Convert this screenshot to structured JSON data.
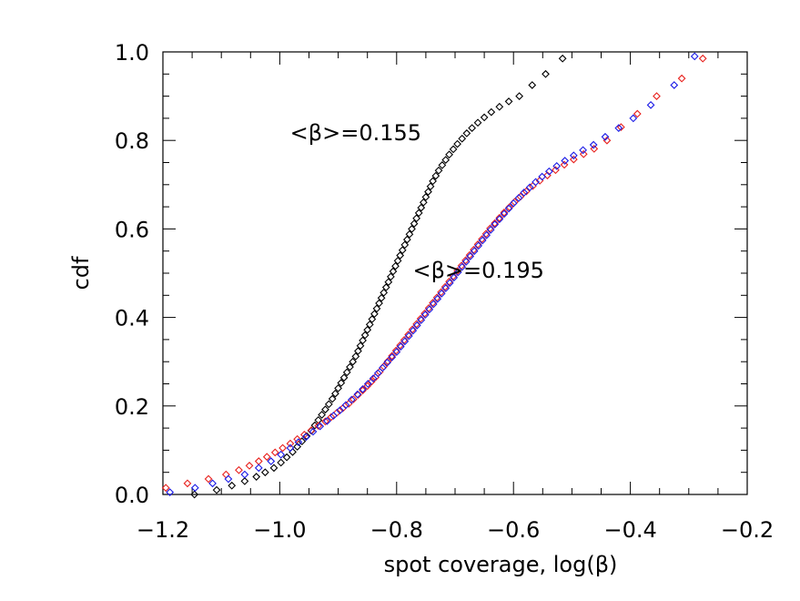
{
  "chart_data": {
    "type": "scatter",
    "title": "",
    "xlabel": "spot coverage, log(β)",
    "ylabel": "cdf",
    "xlim": [
      -1.2,
      -0.2
    ],
    "ylim": [
      0.0,
      1.0
    ],
    "grid": false,
    "marker": "diamond",
    "x_ticks": [
      -1.2,
      -1.0,
      -0.8,
      -0.6,
      -0.4,
      -0.2
    ],
    "x_tick_labels": [
      "−1.2",
      "−1.0",
      "−0.8",
      "−0.6",
      "−0.4",
      "−0.2"
    ],
    "y_ticks": [
      0.0,
      0.2,
      0.4,
      0.6,
      0.8,
      1.0
    ],
    "y_tick_labels": [
      "0.0",
      "0.2",
      "0.4",
      "0.6",
      "0.8",
      "1.0"
    ],
    "annotations": [
      {
        "text": "<β>=0.155",
        "x": -0.87,
        "y": 0.8
      },
      {
        "text": "<β>=0.195",
        "x": -0.66,
        "y": 0.49
      }
    ],
    "series": [
      {
        "name": "black",
        "color": "#000000",
        "x": [
          -1.146,
          -1.108,
          -1.082,
          -1.06,
          -1.04,
          -1.025,
          -1.01,
          -0.998,
          -0.988,
          -0.978,
          -0.97,
          -0.962,
          -0.954,
          -0.946,
          -0.94,
          -0.934,
          -0.928,
          -0.922,
          -0.916,
          -0.91,
          -0.905,
          -0.9,
          -0.895,
          -0.89,
          -0.885,
          -0.88,
          -0.875,
          -0.87,
          -0.866,
          -0.862,
          -0.858,
          -0.854,
          -0.85,
          -0.846,
          -0.842,
          -0.838,
          -0.834,
          -0.83,
          -0.826,
          -0.822,
          -0.818,
          -0.814,
          -0.81,
          -0.806,
          -0.802,
          -0.798,
          -0.794,
          -0.79,
          -0.786,
          -0.782,
          -0.778,
          -0.774,
          -0.77,
          -0.766,
          -0.762,
          -0.758,
          -0.754,
          -0.75,
          -0.746,
          -0.742,
          -0.738,
          -0.733,
          -0.728,
          -0.722,
          -0.716,
          -0.71,
          -0.703,
          -0.696,
          -0.688,
          -0.68,
          -0.671,
          -0.661,
          -0.65,
          -0.638,
          -0.624,
          -0.608,
          -0.59,
          -0.568,
          -0.545,
          -0.516
        ],
        "y": [
          0.0,
          0.01,
          0.02,
          0.03,
          0.04,
          0.05,
          0.06,
          0.072,
          0.084,
          0.096,
          0.108,
          0.12,
          0.132,
          0.144,
          0.156,
          0.168,
          0.18,
          0.192,
          0.204,
          0.216,
          0.228,
          0.24,
          0.252,
          0.264,
          0.276,
          0.288,
          0.3,
          0.312,
          0.324,
          0.336,
          0.348,
          0.36,
          0.372,
          0.384,
          0.396,
          0.408,
          0.42,
          0.432,
          0.444,
          0.456,
          0.468,
          0.48,
          0.492,
          0.504,
          0.516,
          0.528,
          0.54,
          0.552,
          0.564,
          0.576,
          0.588,
          0.6,
          0.612,
          0.624,
          0.636,
          0.648,
          0.66,
          0.672,
          0.684,
          0.696,
          0.708,
          0.72,
          0.732,
          0.744,
          0.756,
          0.768,
          0.78,
          0.792,
          0.804,
          0.816,
          0.828,
          0.84,
          0.852,
          0.864,
          0.876,
          0.888,
          0.9,
          0.925,
          0.95,
          0.985
        ]
      },
      {
        "name": "red",
        "color": "#e8201c",
        "x": [
          -1.195,
          -1.158,
          -1.122,
          -1.092,
          -1.07,
          -1.052,
          -1.036,
          -1.022,
          -1.008,
          -0.995,
          -0.982,
          -0.97,
          -0.958,
          -0.946,
          -0.934,
          -0.922,
          -0.912,
          -0.902,
          -0.892,
          -0.882,
          -0.874,
          -0.866,
          -0.858,
          -0.85,
          -0.843,
          -0.836,
          -0.829,
          -0.822,
          -0.815,
          -0.808,
          -0.801,
          -0.794,
          -0.787,
          -0.78,
          -0.773,
          -0.766,
          -0.759,
          -0.752,
          -0.745,
          -0.738,
          -0.731,
          -0.724,
          -0.717,
          -0.71,
          -0.703,
          -0.696,
          -0.689,
          -0.682,
          -0.675,
          -0.668,
          -0.661,
          -0.654,
          -0.647,
          -0.64,
          -0.632,
          -0.624,
          -0.616,
          -0.607,
          -0.598,
          -0.588,
          -0.578,
          -0.567,
          -0.555,
          -0.542,
          -0.528,
          -0.513,
          -0.497,
          -0.48,
          -0.462,
          -0.44,
          -0.416,
          -0.388,
          -0.355,
          -0.312,
          -0.276
        ],
        "y": [
          0.015,
          0.025,
          0.035,
          0.045,
          0.055,
          0.065,
          0.075,
          0.085,
          0.095,
          0.105,
          0.115,
          0.125,
          0.135,
          0.145,
          0.155,
          0.165,
          0.175,
          0.185,
          0.195,
          0.205,
          0.215,
          0.225,
          0.235,
          0.245,
          0.255,
          0.265,
          0.277,
          0.289,
          0.301,
          0.313,
          0.325,
          0.337,
          0.349,
          0.361,
          0.373,
          0.385,
          0.397,
          0.409,
          0.421,
          0.433,
          0.445,
          0.457,
          0.469,
          0.481,
          0.493,
          0.505,
          0.517,
          0.529,
          0.541,
          0.553,
          0.565,
          0.577,
          0.589,
          0.601,
          0.613,
          0.625,
          0.637,
          0.649,
          0.661,
          0.673,
          0.685,
          0.697,
          0.709,
          0.721,
          0.733,
          0.745,
          0.757,
          0.769,
          0.781,
          0.8,
          0.83,
          0.86,
          0.9,
          0.94,
          0.985
        ]
      },
      {
        "name": "blue",
        "color": "#1a1ae6",
        "x": [
          -1.188,
          -1.145,
          -1.115,
          -1.088,
          -1.06,
          -1.036,
          -1.015,
          -0.998,
          -0.982,
          -0.968,
          -0.955,
          -0.943,
          -0.931,
          -0.919,
          -0.908,
          -0.897,
          -0.887,
          -0.877,
          -0.867,
          -0.858,
          -0.849,
          -0.84,
          -0.832,
          -0.824,
          -0.816,
          -0.808,
          -0.8,
          -0.793,
          -0.786,
          -0.779,
          -0.772,
          -0.765,
          -0.758,
          -0.751,
          -0.744,
          -0.737,
          -0.73,
          -0.723,
          -0.716,
          -0.709,
          -0.702,
          -0.695,
          -0.688,
          -0.681,
          -0.674,
          -0.667,
          -0.66,
          -0.653,
          -0.646,
          -0.639,
          -0.632,
          -0.624,
          -0.616,
          -0.608,
          -0.6,
          -0.591,
          -0.582,
          -0.572,
          -0.562,
          -0.551,
          -0.539,
          -0.526,
          -0.512,
          -0.497,
          -0.481,
          -0.463,
          -0.443,
          -0.42,
          -0.395,
          -0.365,
          -0.325,
          -0.29
        ],
        "y": [
          0.005,
          0.015,
          0.025,
          0.035,
          0.045,
          0.06,
          0.075,
          0.09,
          0.105,
          0.118,
          0.13,
          0.142,
          0.154,
          0.166,
          0.178,
          0.19,
          0.202,
          0.214,
          0.226,
          0.238,
          0.25,
          0.262,
          0.274,
          0.286,
          0.298,
          0.31,
          0.322,
          0.334,
          0.346,
          0.358,
          0.37,
          0.382,
          0.394,
          0.406,
          0.418,
          0.43,
          0.442,
          0.454,
          0.466,
          0.478,
          0.49,
          0.502,
          0.514,
          0.526,
          0.538,
          0.55,
          0.562,
          0.574,
          0.586,
          0.598,
          0.61,
          0.622,
          0.634,
          0.646,
          0.658,
          0.67,
          0.682,
          0.694,
          0.706,
          0.718,
          0.73,
          0.742,
          0.754,
          0.766,
          0.778,
          0.79,
          0.808,
          0.828,
          0.85,
          0.88,
          0.925,
          0.99
        ]
      }
    ]
  }
}
